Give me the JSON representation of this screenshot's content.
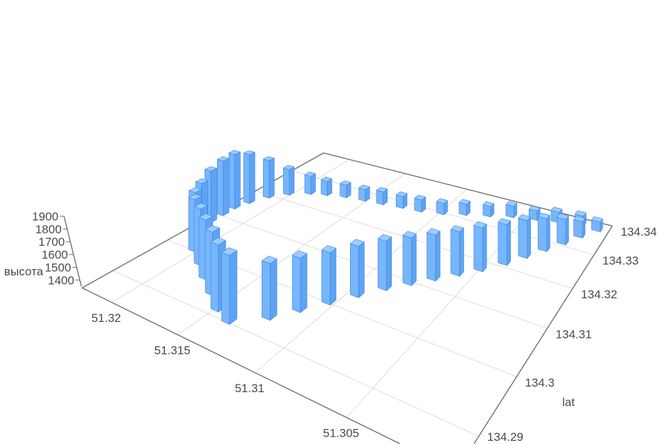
{
  "chart_data": {
    "type": "bar3d",
    "title": "",
    "xlabel": "",
    "ylabel": "lat",
    "zlabel": "высота",
    "xlim": [
      51.3,
      51.3225
    ],
    "ylim": [
      134.285,
      134.34
    ],
    "zlim": [
      1350,
      1900
    ],
    "x_ticks": [
      "51.305",
      "51.31",
      "51.315",
      "51.32"
    ],
    "y_ticks": [
      "134.29",
      "134.3",
      "134.31",
      "134.32",
      "134.33",
      "134.34"
    ],
    "z_ticks": [
      "1400",
      "1500",
      "1600",
      "1700",
      "1800",
      "1900"
    ],
    "grid": true,
    "bar_color": "#6aaef7",
    "bar_edge_color": "#3b7fe6",
    "points": [
      [
        51.3122,
        134.2938,
        1780
      ],
      [
        51.3113,
        134.2971,
        1770
      ],
      [
        51.3104,
        134.3004,
        1760
      ],
      [
        51.3095,
        134.3037,
        1760
      ],
      [
        51.3086,
        134.307,
        1750
      ],
      [
        51.3077,
        134.3098,
        1740
      ],
      [
        51.3068,
        134.3125,
        1730
      ],
      [
        51.3059,
        134.3153,
        1720
      ],
      [
        51.305,
        134.318,
        1720
      ],
      [
        51.3041,
        134.3213,
        1700
      ],
      [
        51.3034,
        134.3246,
        1680
      ],
      [
        51.3027,
        134.3279,
        1640
      ],
      [
        51.302,
        134.3312,
        1580
      ],
      [
        51.3014,
        134.3345,
        1500
      ],
      [
        51.3007,
        134.3378,
        1440
      ],
      [
        51.3018,
        134.3384,
        1440
      ],
      [
        51.3032,
        134.3373,
        1450
      ],
      [
        51.3045,
        134.3362,
        1440
      ],
      [
        51.3059,
        134.3351,
        1460
      ],
      [
        51.3072,
        134.3334,
        1450
      ],
      [
        51.3086,
        134.3318,
        1460
      ],
      [
        51.3099,
        134.3301,
        1460
      ],
      [
        51.3113,
        134.329,
        1470
      ],
      [
        51.3126,
        134.3285,
        1470
      ],
      [
        51.314,
        134.3279,
        1480
      ],
      [
        51.3153,
        134.3274,
        1470
      ],
      [
        51.3167,
        134.3268,
        1480
      ],
      [
        51.318,
        134.3257,
        1500
      ],
      [
        51.3191,
        134.3246,
        1540
      ],
      [
        51.3203,
        134.3224,
        1620
      ],
      [
        51.3212,
        134.3197,
        1740
      ],
      [
        51.3218,
        134.3164,
        1850
      ],
      [
        51.3221,
        134.3136,
        1900
      ],
      [
        51.3221,
        134.3109,
        1890
      ],
      [
        51.3221,
        134.3081,
        1850
      ],
      [
        51.3218,
        134.3054,
        1800
      ],
      [
        51.3212,
        134.3026,
        1800
      ],
      [
        51.3203,
        134.3004,
        1820
      ],
      [
        51.3189,
        134.2982,
        1840
      ],
      [
        51.3176,
        134.296,
        1850
      ],
      [
        51.3162,
        134.2938,
        1860
      ],
      [
        51.3149,
        134.2916,
        1870
      ],
      [
        51.3137,
        134.2905,
        1870
      ]
    ]
  }
}
